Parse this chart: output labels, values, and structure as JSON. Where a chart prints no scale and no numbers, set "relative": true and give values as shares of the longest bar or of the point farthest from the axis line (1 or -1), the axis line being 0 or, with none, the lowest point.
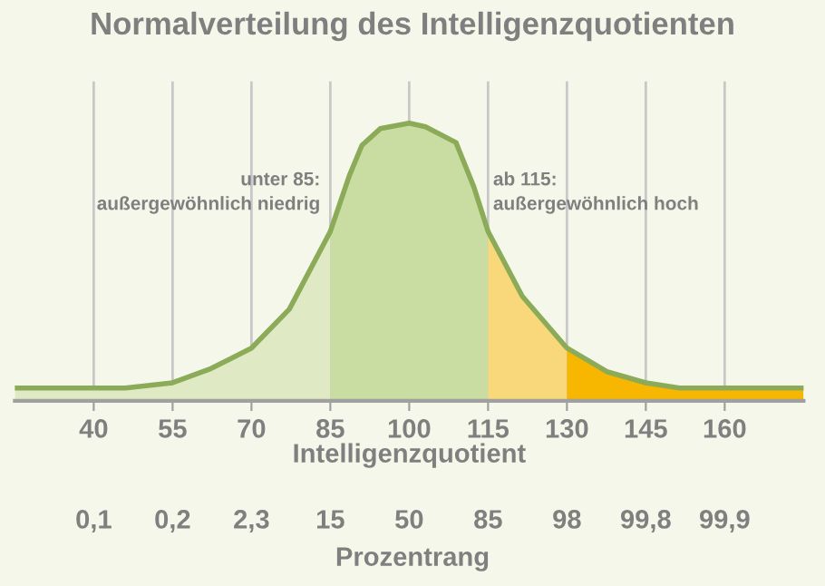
{
  "chart_data": {
    "type": "area",
    "title": "Normalverteilung des Intelligenzquotienten",
    "xlabel": "Intelligenzquotient",
    "relative": true,
    "xlim": [
      25,
      175
    ],
    "xticks": [
      40,
      55,
      70,
      85,
      100,
      115,
      130,
      145,
      160
    ],
    "grid": "x",
    "legend": false,
    "tick_labels": "x",
    "series": [
      {
        "color": "#dfe9c4",
        "x": [
          25,
          46,
          55,
          62.3,
          70,
          77.2,
          85
        ],
        "values": [
          0.046,
          0.046,
          0.065,
          0.116,
          0.19,
          0.33,
          0.61
        ]
      },
      {
        "color": "#c9dca2",
        "x": [
          85,
          88.6,
          91,
          94.5,
          100,
          103.1,
          108.9,
          112.3,
          115
        ],
        "values": [
          0.61,
          0.81,
          0.92,
          0.98,
          1,
          0.987,
          0.93,
          0.77,
          0.61
        ]
      },
      {
        "color": "#f8d87a",
        "x": [
          115,
          121.5,
          130
        ],
        "values": [
          0.61,
          0.377,
          0.19
        ]
      },
      {
        "color": "#f7b600",
        "x": [
          130,
          137.6,
          145,
          151.4,
          175
        ],
        "values": [
          0.19,
          0.105,
          0.065,
          0.046,
          0.046
        ]
      },
      {
        "type": "line",
        "color": "#8cab58",
        "x": [
          25,
          46,
          55,
          62.3,
          70,
          77.2,
          85,
          88.6,
          91,
          94.5,
          100,
          103.1,
          108.9,
          112.3,
          115,
          121.5,
          130,
          137.6,
          145,
          151.4,
          175
        ],
        "values": [
          0.046,
          0.046,
          0.065,
          0.116,
          0.19,
          0.33,
          0.61,
          0.81,
          0.92,
          0.98,
          1,
          0.987,
          0.93,
          0.77,
          0.61,
          0.377,
          0.19,
          0.105,
          0.065,
          0.046,
          0.046
        ]
      }
    ],
    "annotations": [
      {
        "text": "unter 85:\naußergewöhnlich niedrig",
        "x": 85,
        "y": 0.61
      },
      {
        "text": "ab 115:\naußergewöhnlich hoch",
        "x": 115,
        "y": 0.61
      },
      "0,1",
      "0,2",
      "2,3",
      "15",
      "50",
      "85",
      "98",
      "99,8",
      "99,9",
      "Prozentrang"
    ]
  }
}
